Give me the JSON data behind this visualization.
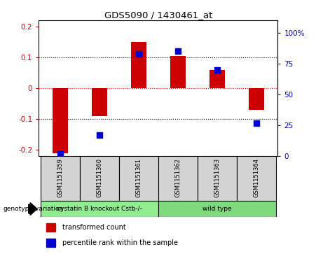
{
  "title": "GDS5090 / 1430461_at",
  "samples": [
    "GSM1151359",
    "GSM1151360",
    "GSM1151361",
    "GSM1151362",
    "GSM1151363",
    "GSM1151364"
  ],
  "bar_values": [
    -0.21,
    -0.09,
    0.15,
    0.105,
    0.06,
    -0.07
  ],
  "dot_values": [
    2.0,
    17.0,
    83.0,
    85.0,
    70.0,
    27.0
  ],
  "groups": [
    {
      "label": "cystatin B knockout Cstb-/-",
      "color": "#90ee90",
      "start": 0,
      "end": 2
    },
    {
      "label": "wild type",
      "color": "#7dda7d",
      "start": 3,
      "end": 5
    }
  ],
  "bar_color": "#cc0000",
  "dot_color": "#0000cc",
  "ylim_left": [
    -0.22,
    0.22
  ],
  "ylim_right": [
    0,
    110
  ],
  "yticks_left": [
    -0.2,
    -0.1,
    0.0,
    0.1,
    0.2
  ],
  "yticks_right": [
    0,
    25,
    50,
    75,
    100
  ],
  "ytick_labels_left": [
    "-0.2",
    "-0.1",
    "0",
    "0.1",
    "0.2"
  ],
  "ytick_labels_right": [
    "0",
    "25",
    "50",
    "75",
    "100%"
  ],
  "hlines": [
    -0.1,
    0.0,
    0.1
  ],
  "hline_colors": [
    "black",
    "red",
    "black"
  ],
  "hline_styles": [
    "dotted",
    "dotted",
    "dotted"
  ],
  "bar_width": 0.4,
  "plot_bg_color": "#ffffff",
  "legend_transformed": "transformed count",
  "legend_percentile": "percentile rank within the sample",
  "genotype_label": "genotype/variation"
}
